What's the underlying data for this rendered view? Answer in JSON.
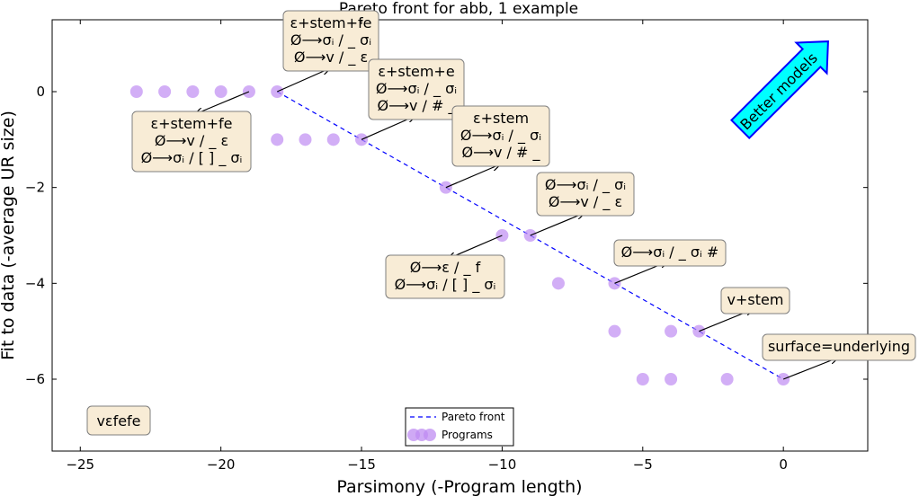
{
  "chart_data": {
    "type": "scatter",
    "title": "Pareto front for abb, 1 example",
    "xlabel": "Parsimony (-Program length)",
    "ylabel": "Fit to data (-average UR size)",
    "xlim": [
      -26,
      3
    ],
    "ylim": [
      -7.5,
      1.5
    ],
    "xticks": [
      -25,
      -20,
      -15,
      -10,
      -5,
      0
    ],
    "xtick_labels": [
      "−25",
      "−20",
      "−15",
      "−10",
      "−5",
      "0"
    ],
    "yticks": [
      0,
      -2,
      -4,
      -6
    ],
    "ytick_labels": [
      "0",
      "−2",
      "−4",
      "−6"
    ],
    "grid": false,
    "legend_position": "bottom-center",
    "legend_entries": [
      "Pareto front",
      "Programs"
    ],
    "series": [
      {
        "name": "Programs",
        "kind": "scatter",
        "color": "#bf8cf2",
        "x": [
          -23,
          -22,
          -21,
          -20,
          -19,
          -18,
          -18,
          -17,
          -16,
          -15,
          -12,
          -10,
          -9,
          -8,
          -6,
          -6,
          -5,
          -4,
          -4,
          -3,
          -2,
          0
        ],
        "y": [
          0,
          0,
          0,
          0,
          0,
          0,
          -1,
          -1,
          -1,
          -1,
          -2,
          -3,
          -3,
          -4,
          -4,
          -5,
          -6,
          -5,
          -6,
          -5,
          -6,
          -6
        ]
      },
      {
        "name": "Pareto front",
        "kind": "line",
        "color": "#0000ff",
        "dash": "dashed",
        "x": [
          -18,
          -15,
          -12,
          -9,
          -6,
          -3,
          0
        ],
        "y": [
          0,
          -1,
          -2,
          -3,
          -4,
          -5,
          -6
        ]
      }
    ],
    "annotations": [
      {
        "lines": [
          "ε+stem+fe",
          "Ø⟶v / _ ε",
          "Ø⟶σᵢ / [ ] _ σᵢ"
        ],
        "point": [
          -19,
          0
        ]
      },
      {
        "lines": [
          "ε+stem+fe",
          "Ø⟶σᵢ / _ σᵢ",
          "Ø⟶v / _ ε"
        ],
        "point": [
          -18,
          0
        ]
      },
      {
        "lines": [
          "ε+stem+e",
          "Ø⟶σᵢ / _ σᵢ",
          "Ø⟶v / # _"
        ],
        "point": [
          -15,
          -1
        ]
      },
      {
        "lines": [
          "ε+stem",
          "Ø⟶σᵢ / _ σᵢ",
          "Ø⟶v / # _"
        ],
        "point": [
          -12,
          -2
        ]
      },
      {
        "lines": [
          "Ø⟶σᵢ / _ σᵢ",
          "Ø⟶v / _ ε"
        ],
        "point": [
          -9,
          -3
        ]
      },
      {
        "lines": [
          "Ø⟶ε / _ f",
          "Ø⟶σᵢ / [ ] _ σᵢ"
        ],
        "point": [
          -10,
          -3
        ]
      },
      {
        "lines": [
          "Ø⟶σᵢ / _ σᵢ #"
        ],
        "point": [
          -6,
          -4
        ]
      },
      {
        "lines": [
          "v+stem"
        ],
        "point": [
          -3,
          -5
        ]
      },
      {
        "lines": [
          "surface=underlying"
        ],
        "point": [
          0,
          -6
        ]
      }
    ],
    "corner_label": "vɛfefe",
    "better_models_label": "Better models",
    "colors": {
      "points": "#bf8cf2",
      "pareto_line": "#0000ff",
      "annotation_fill": "#f8ecd6",
      "annotation_edge": "#7f7f7f",
      "arrow_fill": "#00ffff",
      "arrow_edge": "#0000ff"
    }
  }
}
